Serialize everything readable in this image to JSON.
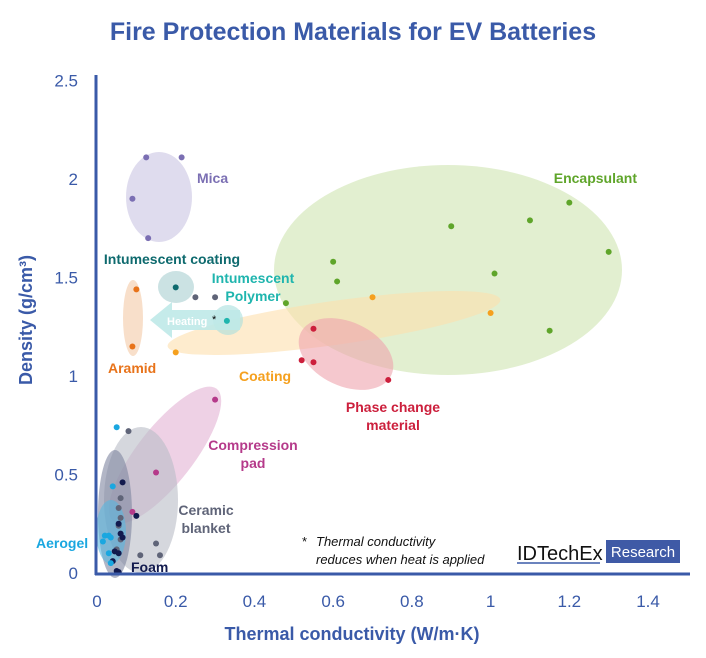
{
  "chart_data": {
    "type": "scatter",
    "title": "Fire Protection Materials for EV Batteries",
    "xlabel": "Thermal conductivity (W/m·K)",
    "ylabel": "Density (g/cm³)",
    "xlim": [
      0,
      1.5
    ],
    "ylim": [
      0,
      2.5
    ],
    "x_ticks": [
      "0",
      "0.2",
      "0.4",
      "0.6",
      "0.8",
      "1",
      "1.2",
      "1.4"
    ],
    "y_ticks": [
      "0",
      "0.5",
      "1",
      "1.5",
      "2",
      "2.5"
    ],
    "grid": false,
    "series": [
      {
        "name": "Mica",
        "color": "#7b6fb3",
        "points": [
          [
            0.125,
            2.11
          ],
          [
            0.215,
            2.11
          ],
          [
            0.09,
            1.9
          ],
          [
            0.13,
            1.7
          ]
        ]
      },
      {
        "name": "Encapsulant",
        "color": "#5fa52a",
        "points": [
          [
            0.48,
            1.37
          ],
          [
            0.6,
            1.58
          ],
          [
            0.61,
            1.48
          ],
          [
            0.9,
            1.76
          ],
          [
            1.01,
            1.52
          ],
          [
            1.1,
            1.79
          ],
          [
            1.2,
            1.88
          ],
          [
            1.3,
            1.63
          ],
          [
            1.15,
            1.23
          ]
        ]
      },
      {
        "name": "Coating",
        "color": "#f5a01e",
        "points": [
          [
            0.2,
            1.12
          ],
          [
            0.7,
            1.4
          ],
          [
            1.0,
            1.32
          ]
        ]
      },
      {
        "name": "Phase change material",
        "color": "#cc1f3c",
        "points": [
          [
            0.55,
            1.24
          ],
          [
            0.52,
            1.08
          ],
          [
            0.55,
            1.07
          ],
          [
            0.74,
            0.98
          ]
        ]
      },
      {
        "name": "Intumescent coating",
        "color": "#0e6a6e",
        "points": [
          [
            0.2,
            1.45
          ]
        ]
      },
      {
        "name": "Intumescent Polymer",
        "color": "#1fb5ae",
        "points": [
          [
            0.33,
            1.28
          ]
        ]
      },
      {
        "name": "Aramid",
        "color": "#e8731a",
        "points": [
          [
            0.1,
            1.44
          ],
          [
            0.09,
            1.15
          ]
        ]
      },
      {
        "name": "Compression pad",
        "color": "#b53a8a",
        "points": [
          [
            0.3,
            0.88
          ],
          [
            0.15,
            0.51
          ],
          [
            0.09,
            0.31
          ]
        ]
      },
      {
        "name": "Ceramic blanket",
        "color": "#5f6478",
        "points": [
          [
            0.08,
            0.72
          ],
          [
            0.25,
            1.4
          ],
          [
            0.3,
            1.4
          ],
          [
            0.15,
            0.15
          ],
          [
            0.16,
            0.09
          ],
          [
            0.11,
            0.09
          ],
          [
            0.06,
            0.38
          ],
          [
            0.055,
            0.33
          ],
          [
            0.06,
            0.28
          ],
          [
            0.055,
            0.24
          ],
          [
            0.06,
            0.17
          ],
          [
            0.05,
            0.12
          ]
        ]
      },
      {
        "name": "Foam",
        "color": "#121a4e",
        "points": [
          [
            0.065,
            0.46
          ],
          [
            0.1,
            0.29
          ],
          [
            0.055,
            0.25
          ],
          [
            0.06,
            0.2
          ],
          [
            0.045,
            0.11
          ],
          [
            0.055,
            0.1
          ],
          [
            0.05,
            0.01
          ],
          [
            0.055,
            0.005
          ],
          [
            0.04,
            0.06
          ],
          [
            0.065,
            0.18
          ]
        ]
      },
      {
        "name": "Aerogel",
        "color": "#1aa7e0",
        "points": [
          [
            0.05,
            0.74
          ],
          [
            0.04,
            0.44
          ],
          [
            0.02,
            0.19
          ],
          [
            0.03,
            0.19
          ],
          [
            0.035,
            0.18
          ],
          [
            0.015,
            0.16
          ],
          [
            0.03,
            0.1
          ],
          [
            0.035,
            0.05
          ]
        ]
      }
    ],
    "annotations": {
      "heating": "Heating",
      "asterisk": "*",
      "note_line1": "Thermal conductivity",
      "note_line2": "reduces when heat is applied"
    }
  },
  "labels": {
    "mica": "Mica",
    "encapsulant": "Encapsulant",
    "coating": "Coating",
    "phase1": "Phase change",
    "phase2": "material",
    "int_coating": "Intumescent coating",
    "int_poly1": "Intumescent",
    "int_poly2": "Polymer",
    "aramid": "Aramid",
    "comp1": "Compression",
    "comp2": "pad",
    "cer1": "Ceramic",
    "cer2": "blanket",
    "aerogel": "Aerogel",
    "foam": "Foam"
  },
  "logo": {
    "brand": "IDTechEx",
    "badge": "Research"
  },
  "colors": {
    "title": "#3a5aa8",
    "axis": "#3a5aa8"
  }
}
